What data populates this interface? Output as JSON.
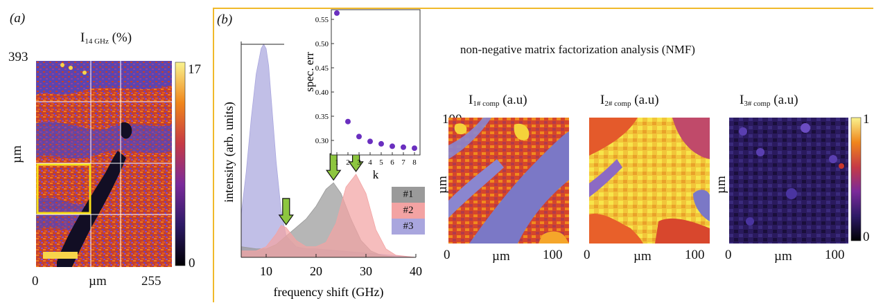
{
  "panel_a": {
    "label": "(a)",
    "title_main": "I",
    "title_sub": "14 GHz",
    "title_unit": "(%)",
    "y_top_tick": "393",
    "y_axis_label": "µm",
    "x_ticks": [
      "0",
      "µm",
      "255"
    ],
    "colorbar_ticks": [
      "17",
      "0"
    ]
  },
  "panel_b": {
    "label": "(b)",
    "nmf_title": "non-negative matrix factorization analysis (NMF)",
    "maps": [
      {
        "title_main": "I",
        "title_sub": "1# comp",
        "title_unit": "(a.u)",
        "y_label": "µm",
        "y_top_tick": "100",
        "x_ticks": [
          "0",
          "µm",
          "100"
        ]
      },
      {
        "title_main": "I",
        "title_sub": "2# comp",
        "title_unit": "(a.u)",
        "x_ticks": [
          "0",
          "µm",
          "100"
        ]
      },
      {
        "title_main": "I",
        "title_sub": "3# comp",
        "title_unit": "(a.u)",
        "y_label": "µm",
        "x_ticks": [
          "0",
          "µm",
          "100"
        ],
        "colorbar_ticks": [
          "1",
          "0"
        ]
      }
    ]
  },
  "colors": {
    "panel_border": "#f0b92a",
    "comp1": "#9a9a9a",
    "comp2": "#f3a3a3",
    "comp3": "#a9a6de",
    "arrow": "#8dc63f",
    "marker": "#6a2fbf",
    "highlight_box": "#f5dd17"
  },
  "chart_data": [
    {
      "type": "area",
      "xlabel": "frequency shift (GHz)",
      "ylabel": "intensity (arb. units)",
      "xlim": [
        5,
        40
      ],
      "x_ticks": [
        "10",
        "20",
        "30",
        "40"
      ],
      "legend": [
        "#1",
        "#2",
        "#3"
      ],
      "legend_position": "right",
      "arrows_at_ghz": [
        14,
        23.5,
        28
      ],
      "series": [
        {
          "name": "#1",
          "x": [
            5,
            8,
            10,
            12,
            14,
            16,
            18,
            20,
            22,
            23.5,
            25,
            27,
            29,
            31,
            33,
            36,
            40
          ],
          "values": [
            0.05,
            0.04,
            0.04,
            0.06,
            0.1,
            0.14,
            0.18,
            0.24,
            0.32,
            0.35,
            0.3,
            0.18,
            0.08,
            0.03,
            0.01,
            0.0,
            0.0
          ]
        },
        {
          "name": "#2",
          "x": [
            5,
            8,
            10,
            12,
            13,
            14,
            16,
            18,
            20,
            22,
            24,
            26,
            28,
            30,
            32,
            34,
            36,
            40
          ],
          "values": [
            0.03,
            0.03,
            0.05,
            0.11,
            0.15,
            0.14,
            0.08,
            0.05,
            0.05,
            0.07,
            0.16,
            0.33,
            0.39,
            0.3,
            0.13,
            0.04,
            0.01,
            0.0
          ]
        },
        {
          "name": "#3",
          "x": [
            5,
            6,
            7,
            8,
            9,
            9.5,
            10,
            10.5,
            11,
            12,
            13,
            14,
            16,
            18,
            20,
            25,
            30,
            40
          ],
          "values": [
            0.2,
            0.4,
            0.65,
            0.86,
            0.98,
            1.0,
            0.98,
            0.9,
            0.75,
            0.45,
            0.22,
            0.1,
            0.05,
            0.04,
            0.04,
            0.03,
            0.02,
            0.0
          ]
        }
      ]
    },
    {
      "type": "scatter",
      "xlabel": "k",
      "ylabel": "spec. err",
      "xlim": [
        0.5,
        8.5
      ],
      "ylim": [
        0.27,
        0.57
      ],
      "x_ticks": [
        1,
        2,
        3,
        4,
        5,
        6,
        7,
        8
      ],
      "y_ticks": [
        "0.30",
        "0.35",
        "0.40",
        "0.45",
        "0.50",
        "0.55"
      ],
      "x": [
        1,
        2,
        3,
        4,
        5,
        6,
        7,
        8
      ],
      "values": [
        0.563,
        0.339,
        0.308,
        0.298,
        0.293,
        0.288,
        0.286,
        0.284
      ]
    }
  ]
}
